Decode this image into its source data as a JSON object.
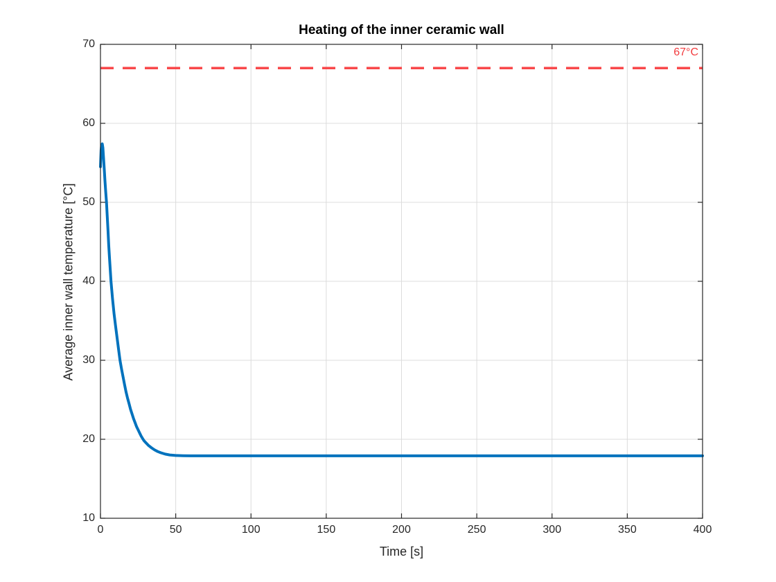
{
  "chart_data": {
    "type": "line",
    "title": "Heating of the inner ceramic wall",
    "xlabel": "Time [s]",
    "ylabel": "Average inner wall temperature [°C]",
    "xlim": [
      0,
      400
    ],
    "ylim": [
      10,
      70
    ],
    "x_ticks": [
      0,
      50,
      100,
      150,
      200,
      250,
      300,
      350,
      400
    ],
    "y_ticks": [
      10,
      20,
      30,
      40,
      50,
      60,
      70
    ],
    "grid": true,
    "legend": "none",
    "threshold": {
      "value": 67,
      "label": "67°C",
      "color": "#f8484a",
      "style": "dashed"
    },
    "series": [
      {
        "name": "average-inner-wall-temperature",
        "color": "#0072bd",
        "line_width": 4,
        "points": [
          [
            0,
            54.5
          ],
          [
            0.4,
            56.6
          ],
          [
            0.8,
            57.3
          ],
          [
            1.2,
            57.4
          ],
          [
            1.6,
            56.9
          ],
          [
            2,
            55.8
          ],
          [
            2.5,
            54.3
          ],
          [
            3,
            52.7
          ],
          [
            3.5,
            51.3
          ],
          [
            4,
            50.0
          ],
          [
            4.5,
            48.2
          ],
          [
            5,
            46.4
          ],
          [
            5.5,
            44.6
          ],
          [
            6,
            43.0
          ],
          [
            6.5,
            41.5
          ],
          [
            7,
            40.0
          ],
          [
            7.5,
            38.9
          ],
          [
            8,
            37.8
          ],
          [
            9,
            35.9
          ],
          [
            10,
            34.4
          ],
          [
            11,
            32.9
          ],
          [
            12,
            31.4
          ],
          [
            13,
            30.0
          ],
          [
            14,
            28.9
          ],
          [
            15,
            27.9
          ],
          [
            16,
            26.9
          ],
          [
            17,
            26.0
          ],
          [
            18,
            25.2
          ],
          [
            19,
            24.5
          ],
          [
            20,
            23.8
          ],
          [
            21,
            23.2
          ],
          [
            22,
            22.6
          ],
          [
            23,
            22.1
          ],
          [
            24,
            21.6
          ],
          [
            25,
            21.2
          ],
          [
            26,
            20.8
          ],
          [
            27,
            20.4
          ],
          [
            28,
            20.1
          ],
          [
            29,
            19.8
          ],
          [
            30,
            19.6
          ],
          [
            32,
            19.2
          ],
          [
            34,
            18.9
          ],
          [
            36,
            18.65
          ],
          [
            38,
            18.45
          ],
          [
            40,
            18.3
          ],
          [
            43,
            18.12
          ],
          [
            46,
            18.02
          ],
          [
            50,
            17.95
          ],
          [
            55,
            17.92
          ],
          [
            60,
            17.9
          ],
          [
            80,
            17.9
          ],
          [
            120,
            17.9
          ],
          [
            160,
            17.9
          ],
          [
            200,
            17.9
          ],
          [
            240,
            17.9
          ],
          [
            280,
            17.9
          ],
          [
            320,
            17.9
          ],
          [
            360,
            17.9
          ],
          [
            400,
            17.9
          ]
        ]
      }
    ],
    "colors": {
      "axis": "#262626",
      "grid": "#dcdcdc",
      "tick_label": "#262626",
      "background": "#ffffff"
    }
  }
}
